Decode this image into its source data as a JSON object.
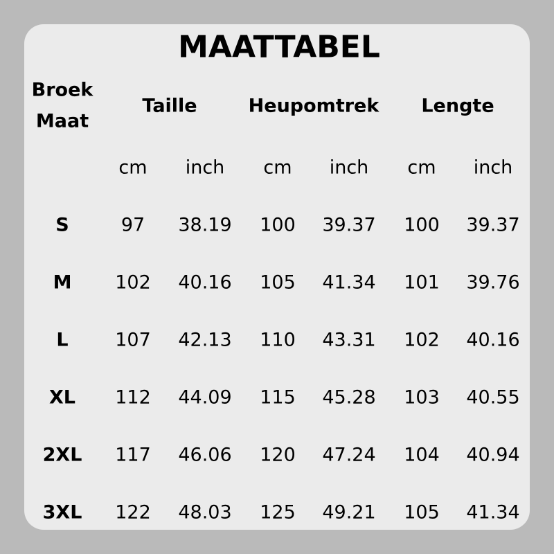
{
  "title": "MAATTABEL",
  "headers": {
    "size_line1": "Broek",
    "size_line2": "Maat",
    "groups": [
      "Taille",
      "Heupomtrek",
      "Lengte"
    ]
  },
  "units": [
    "cm",
    "inch",
    "cm",
    "inch",
    "cm",
    "inch"
  ],
  "rows": [
    {
      "size": "S",
      "values": [
        "97",
        "38.19",
        "100",
        "39.37",
        "100",
        "39.37"
      ]
    },
    {
      "size": "M",
      "values": [
        "102",
        "40.16",
        "105",
        "41.34",
        "101",
        "39.76"
      ]
    },
    {
      "size": "L",
      "values": [
        "107",
        "42.13",
        "110",
        "43.31",
        "102",
        "40.16"
      ]
    },
    {
      "size": "XL",
      "values": [
        "112",
        "44.09",
        "115",
        "45.28",
        "103",
        "40.55"
      ]
    },
    {
      "size": "2XL",
      "values": [
        "117",
        "46.06",
        "120",
        "47.24",
        "104",
        "40.94"
      ]
    },
    {
      "size": "3XL",
      "values": [
        "122",
        "48.03",
        "125",
        "49.21",
        "105",
        "41.34"
      ]
    }
  ],
  "colors": {
    "background": "#bababa",
    "card": "#ebebeb",
    "text": "#000000"
  }
}
